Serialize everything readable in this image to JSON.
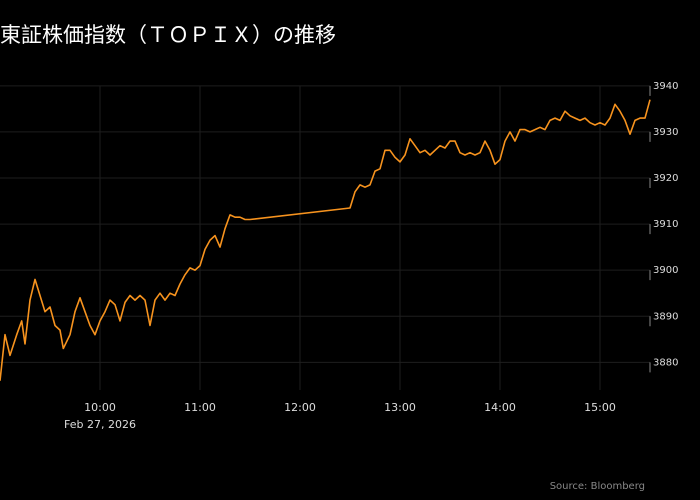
{
  "chart_data": {
    "type": "line",
    "title": "東証株価指数（ＴＯＰＩＸ）の推移",
    "source": "Source: Bloomberg",
    "date_label": "Feb 27, 2026",
    "x": [
      "09:00",
      "09:03",
      "09:06",
      "09:10",
      "09:13",
      "09:15",
      "09:18",
      "09:21",
      "09:24",
      "09:27",
      "09:30",
      "09:33",
      "09:36",
      "09:38",
      "09:42",
      "09:45",
      "09:48",
      "09:51",
      "09:54",
      "09:57",
      "10:00",
      "10:03",
      "10:06",
      "10:09",
      "10:12",
      "10:15",
      "10:18",
      "10:21",
      "10:24",
      "10:27",
      "10:30",
      "10:33",
      "10:36",
      "10:39",
      "10:42",
      "10:45",
      "10:48",
      "10:51",
      "10:54",
      "10:57",
      "11:00",
      "11:03",
      "11:06",
      "11:09",
      "11:12",
      "11:15",
      "11:18",
      "11:21",
      "11:24",
      "11:27",
      "11:30",
      "12:30",
      "12:33",
      "12:36",
      "12:39",
      "12:42",
      "12:45",
      "12:48",
      "12:51",
      "12:54",
      "12:57",
      "13:00",
      "13:03",
      "13:06",
      "13:09",
      "13:12",
      "13:15",
      "13:18",
      "13:21",
      "13:24",
      "13:27",
      "13:30",
      "13:33",
      "13:36",
      "13:39",
      "13:42",
      "13:45",
      "13:48",
      "13:51",
      "13:54",
      "13:57",
      "14:00",
      "14:03",
      "14:06",
      "14:09",
      "14:12",
      "14:15",
      "14:18",
      "14:21",
      "14:24",
      "14:27",
      "14:30",
      "14:33",
      "14:36",
      "14:39",
      "14:42",
      "14:45",
      "14:48",
      "14:51",
      "14:54",
      "14:57",
      "15:00",
      "15:03",
      "15:06",
      "15:09",
      "15:12",
      "15:15",
      "15:18",
      "15:21",
      "15:24",
      "15:27",
      "15:30"
    ],
    "series": [
      {
        "name": "TOPIX",
        "color": "#f7931e",
        "values": [
          3876,
          3886,
          3881.5,
          3886,
          3889,
          3884,
          3893.5,
          3898,
          3894.5,
          3891,
          3892,
          3888,
          3887,
          3883,
          3886,
          3891,
          3894,
          3891,
          3888,
          3886,
          3889,
          3891,
          3893.5,
          3892.5,
          3889,
          3893,
          3894.5,
          3893.5,
          3894.5,
          3893.5,
          3888,
          3893.5,
          3895,
          3893.5,
          3895,
          3894.5,
          3897,
          3899,
          3900.5,
          3900,
          3901,
          3904.5,
          3906.5,
          3907.5,
          3905,
          3909,
          3912,
          3911.5,
          3911.5,
          3911,
          3911,
          3913.5,
          3917,
          3918.5,
          3918,
          3918.5,
          3921.5,
          3922,
          3926,
          3926,
          3924.5,
          3923.5,
          3925,
          3928.5,
          3927,
          3925.5,
          3926,
          3925,
          3926,
          3927,
          3926.5,
          3928,
          3928,
          3925.5,
          3925,
          3925.5,
          3925,
          3925.5,
          3928,
          3926,
          3923,
          3924,
          3928,
          3930,
          3928,
          3930.5,
          3930.5,
          3930,
          3930.5,
          3931,
          3930.5,
          3932.5,
          3933,
          3932.5,
          3934.5,
          3933.5,
          3933,
          3932.5,
          3933,
          3932,
          3931.5,
          3932,
          3931.5,
          3933,
          3936,
          3934.5,
          3932.5,
          3929.5,
          3932.5,
          3933,
          3933,
          3937
        ]
      }
    ],
    "xlim": [
      "09:00",
      "15:30"
    ],
    "xticks": [
      "10:00",
      "11:00",
      "12:00",
      "13:00",
      "14:00",
      "15:00"
    ],
    "ylim": [
      3874,
      3943
    ],
    "yticks": [
      3880,
      3890,
      3900,
      3910,
      3920,
      3930,
      3940
    ],
    "grid": true
  }
}
